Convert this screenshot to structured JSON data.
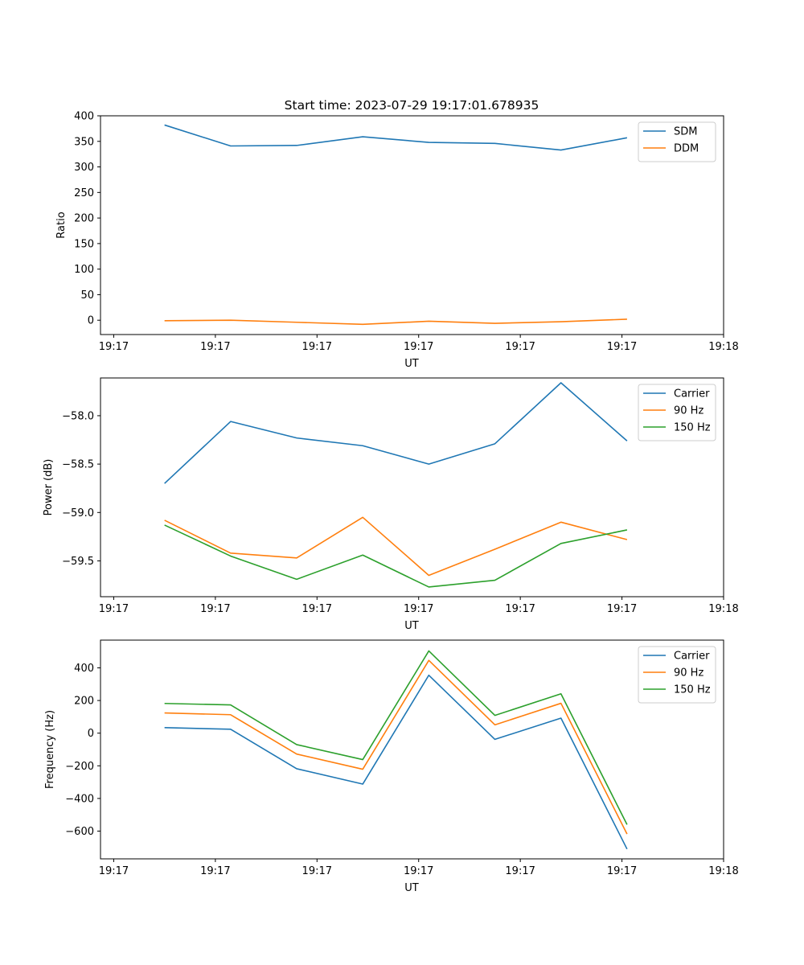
{
  "figure": {
    "title": "Start time: 2023-07-29 19:17:01.678935"
  },
  "chart_data": [
    {
      "type": "line",
      "title": "Start time: 2023-07-29 19:17:01.678935",
      "xlabel": "UT",
      "ylabel": "Ratio",
      "x_tick_labels": [
        "19:17",
        "19:17",
        "19:17",
        "19:17",
        "19:17",
        "19:17",
        "19:18"
      ],
      "x": [
        0.5,
        1.15,
        1.8,
        2.45,
        3.1,
        3.75,
        4.4,
        5.05
      ],
      "xlim": [
        -0.13,
        6.0
      ],
      "ylim": [
        -28,
        400
      ],
      "yticks": [
        0,
        50,
        100,
        150,
        200,
        250,
        300,
        350,
        400
      ],
      "ytick_labels": [
        "0",
        "50",
        "100",
        "150",
        "200",
        "250",
        "300",
        "350",
        "400"
      ],
      "legend_loc": "upper right",
      "series": [
        {
          "name": "SDM",
          "color": "#1f77b4",
          "values": [
            382,
            341,
            342,
            359,
            348,
            346,
            333,
            357
          ]
        },
        {
          "name": "DDM",
          "color": "#ff7f0e",
          "values": [
            -1,
            0,
            -4,
            -8,
            -2,
            -6,
            -3,
            2
          ]
        }
      ]
    },
    {
      "type": "line",
      "title": "",
      "xlabel": "UT",
      "ylabel": "Power (dB)",
      "x_tick_labels": [
        "19:17",
        "19:17",
        "19:17",
        "19:17",
        "19:17",
        "19:17",
        "19:18"
      ],
      "x": [
        0.5,
        1.15,
        1.8,
        2.45,
        3.1,
        3.75,
        4.4,
        5.05
      ],
      "xlim": [
        -0.13,
        6.0
      ],
      "ylim": [
        -59.87,
        -57.61
      ],
      "yticks": [
        -58.0,
        -58.5,
        -59.0,
        -59.5
      ],
      "ytick_labels": [
        "−58.0",
        "−58.5",
        "−59.0",
        "−59.5"
      ],
      "legend_loc": "upper right",
      "series": [
        {
          "name": "Carrier",
          "color": "#1f77b4",
          "values": [
            -58.7,
            -58.06,
            -58.23,
            -58.31,
            -58.5,
            -58.29,
            -57.66,
            -58.26
          ]
        },
        {
          "name": "90 Hz",
          "color": "#ff7f0e",
          "values": [
            -59.08,
            -59.42,
            -59.47,
            -59.05,
            -59.65,
            -59.38,
            -59.1,
            -59.28
          ]
        },
        {
          "name": "150 Hz",
          "color": "#2ca02c",
          "values": [
            -59.13,
            -59.45,
            -59.69,
            -59.44,
            -59.77,
            -59.7,
            -59.32,
            -59.18
          ]
        }
      ]
    },
    {
      "type": "line",
      "title": "",
      "xlabel": "UT",
      "ylabel": "Frequency (Hz)",
      "x_tick_labels": [
        "19:17",
        "19:17",
        "19:17",
        "19:17",
        "19:17",
        "19:17",
        "19:18"
      ],
      "x": [
        0.5,
        1.15,
        1.8,
        2.45,
        3.1,
        3.75,
        4.4,
        5.05
      ],
      "xlim": [
        -0.13,
        6.0
      ],
      "ylim": [
        -770,
        570
      ],
      "yticks": [
        400,
        200,
        0,
        -200,
        -400,
        -600
      ],
      "ytick_labels": [
        "400",
        "200",
        "0",
        "−200",
        "−400",
        "−600"
      ],
      "legend_loc": "upper right",
      "series": [
        {
          "name": "Carrier",
          "color": "#1f77b4",
          "values": [
            34,
            24,
            -218,
            -312,
            355,
            -38,
            92,
            -710
          ]
        },
        {
          "name": "90 Hz",
          "color": "#ff7f0e",
          "values": [
            124,
            113,
            -128,
            -221,
            446,
            51,
            183,
            -618
          ]
        },
        {
          "name": "150 Hz",
          "color": "#2ca02c",
          "values": [
            182,
            173,
            -70,
            -162,
            504,
            109,
            241,
            -560
          ]
        }
      ]
    }
  ]
}
